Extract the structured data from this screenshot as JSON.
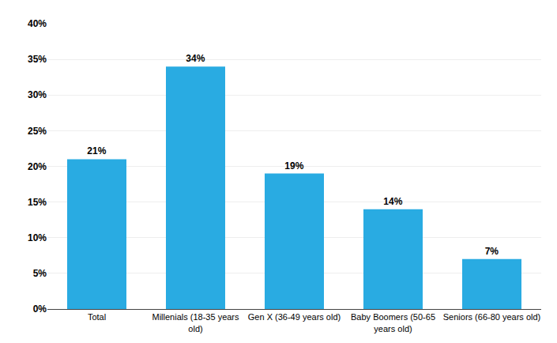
{
  "chart_data": {
    "type": "bar",
    "categories": [
      "Total",
      "Millenials (18-35 years\nold)",
      "Gen X (36-49 years old)",
      "Baby Boomers (50-65\nyears old)",
      "Seniors (66-80 years old)"
    ],
    "values": [
      21,
      34,
      19,
      14,
      7
    ],
    "value_labels": [
      "21%",
      "34%",
      "19%",
      "14%",
      "7%"
    ],
    "data_labels": true,
    "color": "#29ABE2",
    "ylim": [
      0,
      40
    ],
    "yticks": [
      {
        "value": 0,
        "label": "0%"
      },
      {
        "value": 5,
        "label": "5%"
      },
      {
        "value": 10,
        "label": "10%"
      },
      {
        "value": 15,
        "label": "15%"
      },
      {
        "value": 20,
        "label": "20%"
      },
      {
        "value": 25,
        "label": "25%"
      },
      {
        "value": 30,
        "label": "30%"
      },
      {
        "value": 35,
        "label": "35%"
      },
      {
        "value": 40,
        "label": "40%"
      }
    ],
    "grid": true
  }
}
